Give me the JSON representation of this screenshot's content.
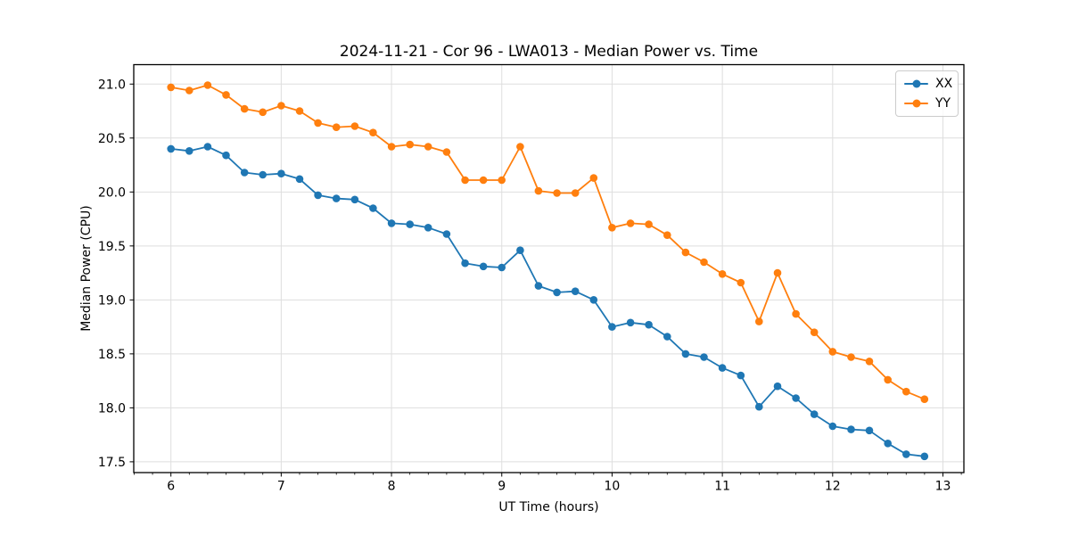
{
  "colors": {
    "background": "#ffffff",
    "spine": "#000000",
    "grid": "#dedede",
    "tick": "#000000",
    "text": "#000000",
    "legend_border": "#cccccc"
  },
  "chart_data": {
    "type": "line",
    "title": "2024-11-21 - Cor 96 - LWA013 - Median Power vs. Time",
    "xlabel": "UT Time (hours)",
    "ylabel": "Median Power (CPU)",
    "xlim": [
      5.663,
      13.19
    ],
    "ylim": [
      17.4,
      21.18
    ],
    "xticks": [
      6,
      7,
      8,
      9,
      10,
      11,
      12,
      13
    ],
    "yticks": [
      17.5,
      18.0,
      18.5,
      19.0,
      19.5,
      20.0,
      20.5,
      21.0
    ],
    "x_minor_step": 0.1666667,
    "grid": true,
    "legend_position": "upper right",
    "x": [
      6.0,
      6.167,
      6.333,
      6.5,
      6.667,
      6.833,
      7.0,
      7.167,
      7.333,
      7.5,
      7.667,
      7.833,
      8.0,
      8.167,
      8.333,
      8.5,
      8.667,
      8.833,
      9.0,
      9.167,
      9.333,
      9.5,
      9.667,
      9.833,
      10.0,
      10.167,
      10.333,
      10.5,
      10.667,
      10.833,
      11.0,
      11.167,
      11.333,
      11.5,
      11.667,
      11.833,
      12.0,
      12.167,
      12.333,
      12.5,
      12.667,
      12.833
    ],
    "series": [
      {
        "name": "XX",
        "color": "#1f77b4",
        "values": [
          20.4,
          20.38,
          20.42,
          20.34,
          20.18,
          20.16,
          20.17,
          20.12,
          19.97,
          19.94,
          19.93,
          19.85,
          19.71,
          19.7,
          19.67,
          19.61,
          19.34,
          19.31,
          19.3,
          19.46,
          19.13,
          19.07,
          19.08,
          19.0,
          18.75,
          18.79,
          18.77,
          18.66,
          18.5,
          18.47,
          18.37,
          18.3,
          18.01,
          18.2,
          18.09,
          17.94,
          17.83,
          17.8,
          17.79,
          17.67,
          17.57,
          17.55
        ]
      },
      {
        "name": "YY",
        "color": "#ff7f0e",
        "values": [
          20.97,
          20.94,
          20.99,
          20.9,
          20.77,
          20.74,
          20.8,
          20.75,
          20.64,
          20.6,
          20.61,
          20.55,
          20.42,
          20.44,
          20.42,
          20.37,
          20.11,
          20.11,
          20.11,
          20.42,
          20.01,
          19.99,
          19.99,
          20.13,
          19.67,
          19.71,
          19.7,
          19.6,
          19.44,
          19.35,
          19.24,
          19.16,
          18.8,
          19.25,
          18.87,
          18.7,
          18.52,
          18.47,
          18.43,
          18.26,
          18.15,
          18.08
        ]
      }
    ]
  }
}
